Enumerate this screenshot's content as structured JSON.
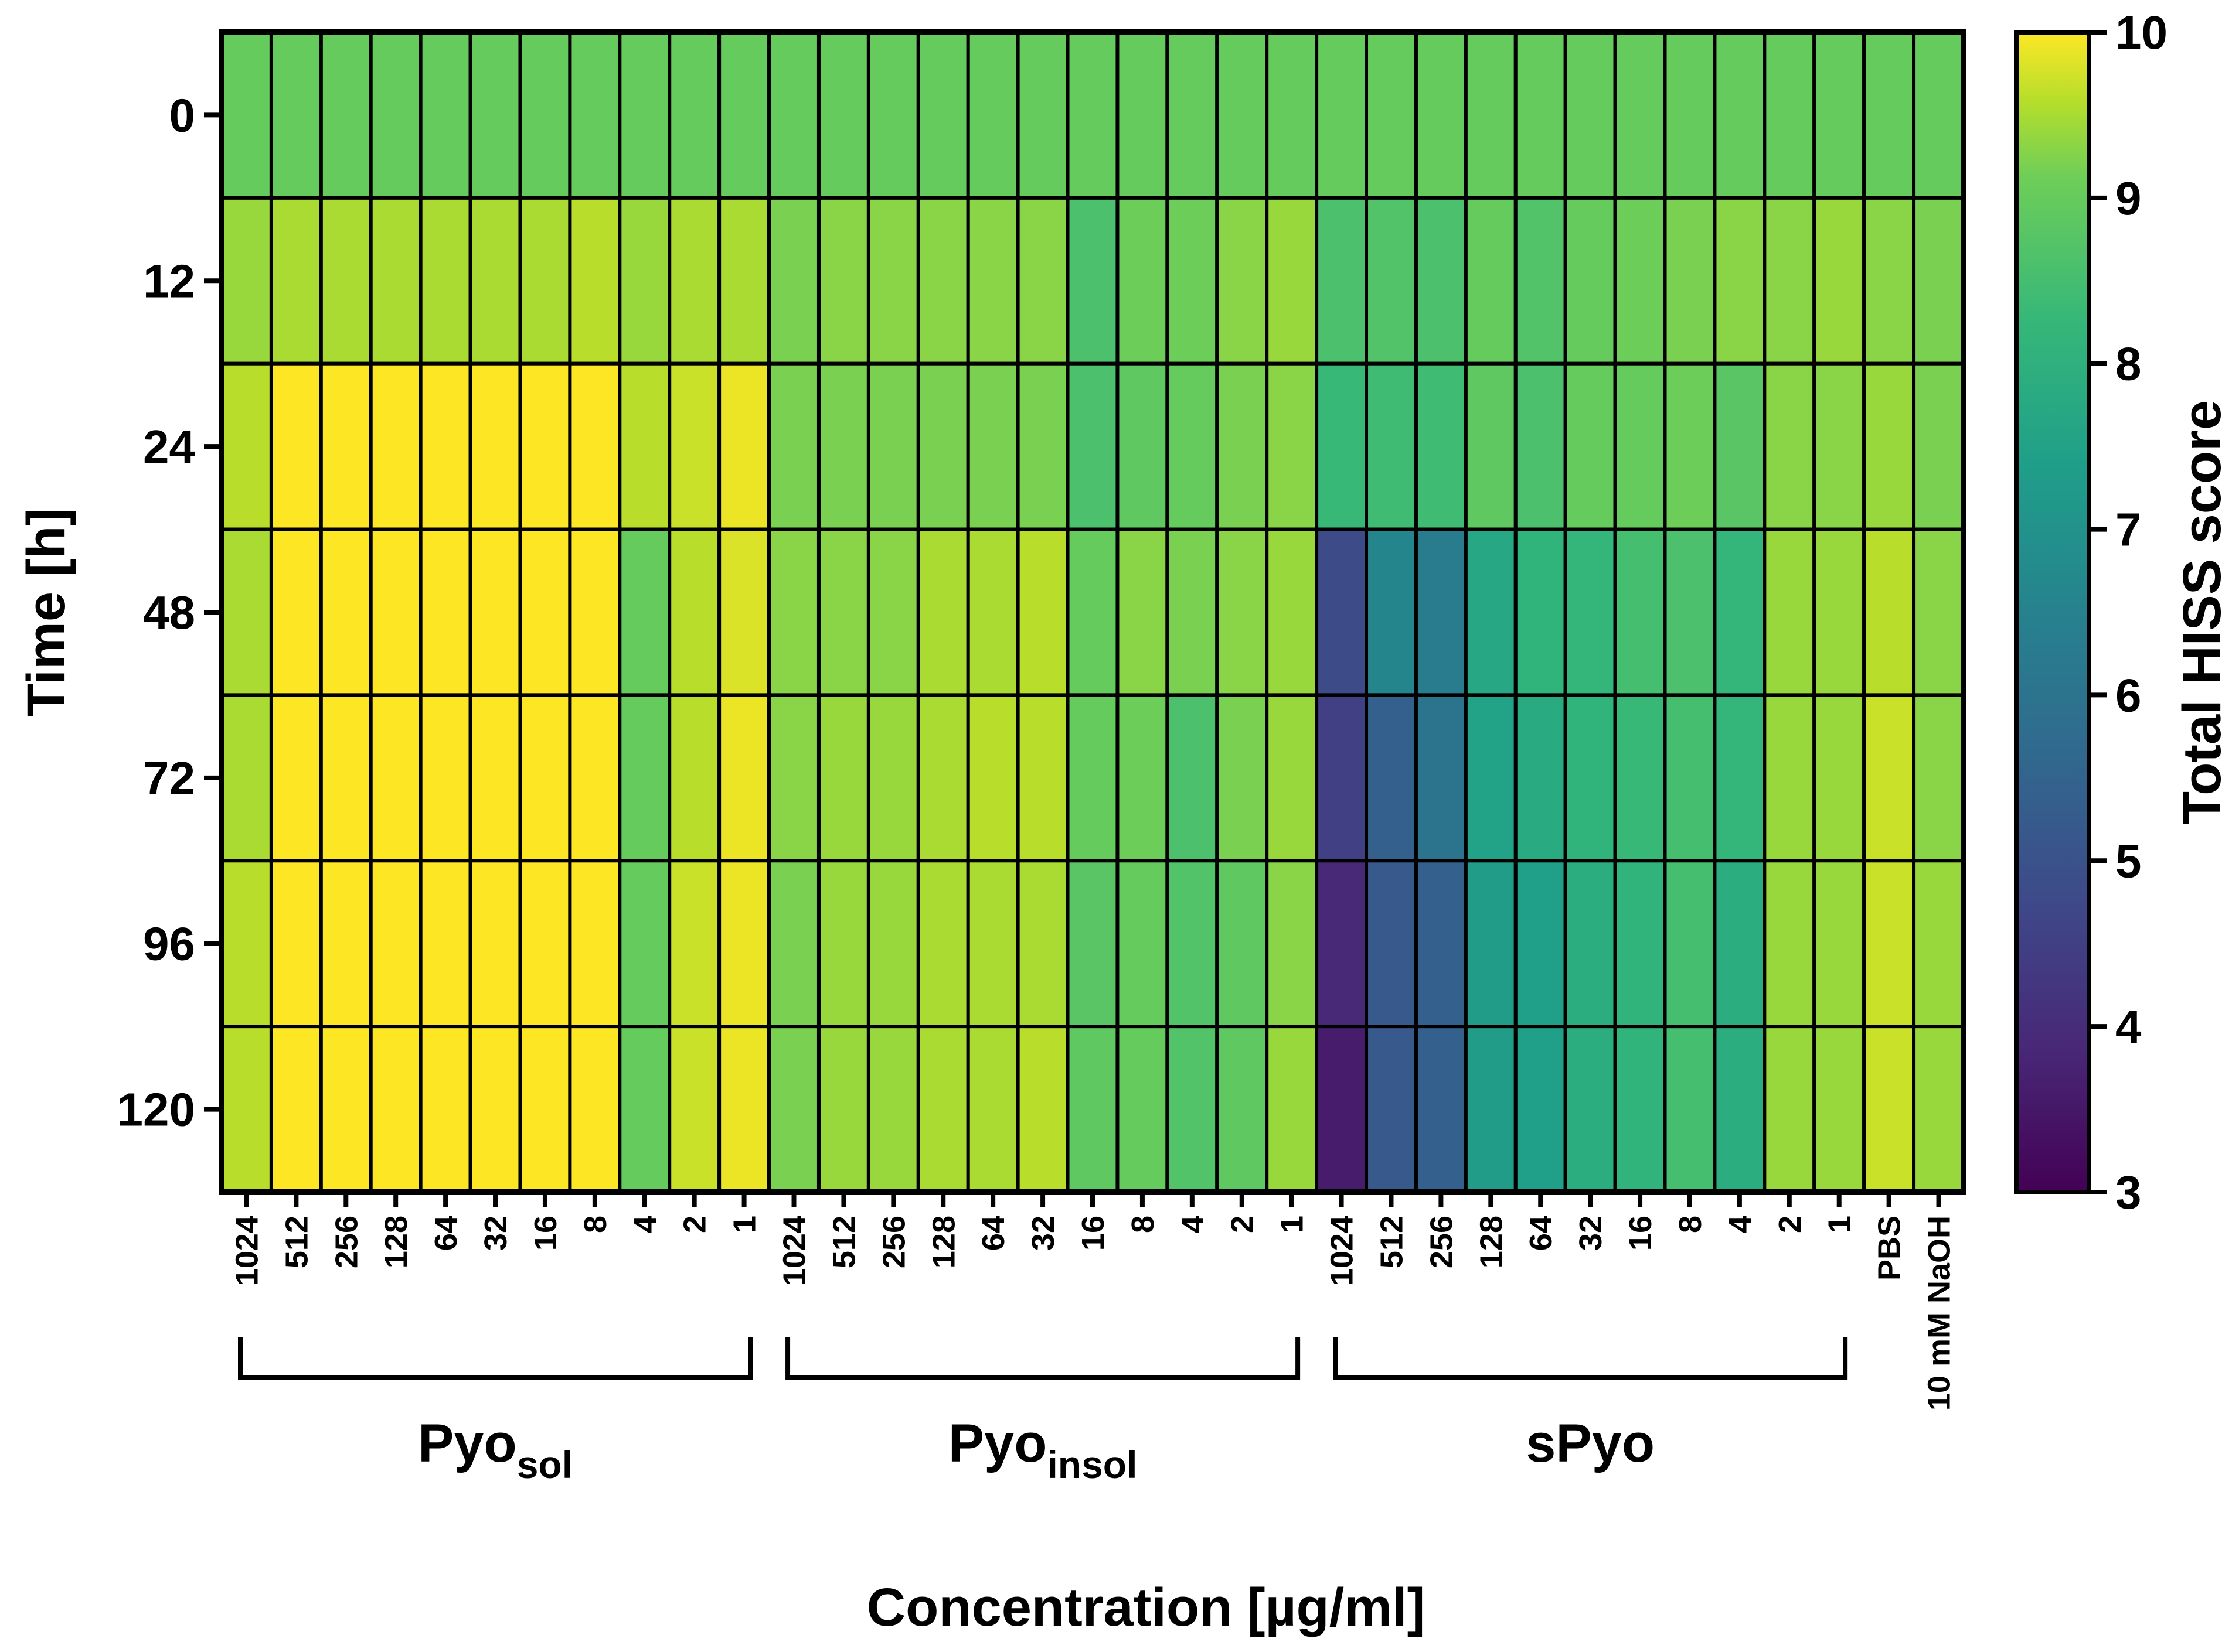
{
  "chart_data": {
    "type": "heatmap",
    "title": "",
    "xlabel": "Concentration [µg/ml]",
    "ylabel": "Time [h]",
    "rows": [
      "0",
      "12",
      "24",
      "48",
      "72",
      "96",
      "120"
    ],
    "columns": [
      "1024",
      "512",
      "256",
      "128",
      "64",
      "32",
      "16",
      "8",
      "4",
      "2",
      "1",
      "1024",
      "512",
      "256",
      "128",
      "64",
      "32",
      "16",
      "8",
      "4",
      "2",
      "1",
      "1024",
      "512",
      "256",
      "128",
      "64",
      "32",
      "16",
      "8",
      "4",
      "2",
      "1",
      "PBS",
      "10 mM NaOH"
    ],
    "groups": [
      {
        "label": "Pyo",
        "subscript": "sol",
        "first_col": 0,
        "last_col": 10
      },
      {
        "label": "Pyo",
        "subscript": "insol",
        "first_col": 11,
        "last_col": 21
      },
      {
        "label": "sPyo",
        "subscript": "",
        "first_col": 22,
        "last_col": 32
      }
    ],
    "values": [
      [
        9,
        9,
        9,
        9,
        9,
        9,
        9,
        9,
        9,
        9,
        9,
        9,
        9,
        9,
        9,
        9,
        9,
        9,
        9,
        9,
        9,
        9,
        9,
        9,
        9,
        9,
        9,
        9,
        9,
        9,
        9,
        9,
        9,
        9,
        9
      ],
      [
        9.4,
        9.5,
        9.5,
        9.5,
        9.5,
        9.5,
        9.5,
        9.6,
        9.4,
        9.5,
        9.5,
        9.2,
        9.3,
        9.3,
        9.3,
        9.3,
        9.3,
        8.6,
        9.1,
        9.1,
        9.3,
        9.4,
        8.6,
        8.7,
        8.6,
        9.0,
        8.7,
        9.0,
        9.1,
        9.2,
        9.3,
        9.3,
        9.4,
        9.3,
        9.2
      ],
      [
        9.6,
        10,
        10,
        10,
        10,
        10,
        10,
        10,
        9.6,
        9.7,
        9.9,
        9.2,
        9.2,
        9.2,
        9.2,
        9.2,
        9.2,
        8.6,
        8.9,
        9.0,
        9.2,
        9.3,
        8.3,
        8.4,
        8.4,
        8.9,
        8.6,
        9.0,
        9.0,
        9.1,
        8.8,
        9.3,
        9.3,
        9.4,
        9.2
      ],
      [
        9.5,
        10,
        10,
        10,
        10,
        10,
        10,
        10,
        9.0,
        9.6,
        9.8,
        9.3,
        9.3,
        9.3,
        9.5,
        9.5,
        9.6,
        9.0,
        9.3,
        9.2,
        9.3,
        9.4,
        4.8,
        6.6,
        6.3,
        7.7,
        8.1,
        8.2,
        8.5,
        8.6,
        8.2,
        9.4,
        9.4,
        9.6,
        9.3
      ],
      [
        9.5,
        10,
        10,
        10,
        10,
        10,
        10,
        10,
        9.0,
        9.6,
        9.9,
        9.3,
        9.4,
        9.4,
        9.5,
        9.6,
        9.6,
        9.0,
        9.1,
        8.6,
        9.2,
        9.4,
        4.5,
        5.4,
        6.0,
        7.5,
        7.8,
        8.1,
        8.3,
        8.5,
        8.2,
        9.4,
        9.4,
        9.7,
        9.3
      ],
      [
        9.6,
        10,
        10,
        10,
        10,
        10,
        10,
        10,
        9.0,
        9.7,
        9.9,
        9.2,
        9.4,
        9.4,
        9.5,
        9.5,
        9.5,
        8.8,
        9.0,
        8.7,
        8.9,
        9.3,
        3.9,
        5.2,
        5.4,
        7.3,
        7.4,
        7.9,
        8.1,
        8.5,
        7.9,
        9.4,
        9.4,
        9.7,
        9.4
      ],
      [
        9.6,
        10,
        10,
        10,
        10,
        10,
        10,
        10,
        9.0,
        9.7,
        9.9,
        9.2,
        9.4,
        9.4,
        9.5,
        9.5,
        9.6,
        8.9,
        9.0,
        8.7,
        8.9,
        9.4,
        3.6,
        5.2,
        5.4,
        7.3,
        7.4,
        7.9,
        8.1,
        8.5,
        7.9,
        9.4,
        9.4,
        9.7,
        9.4
      ]
    ],
    "colorbar": {
      "label": "Total HISS score",
      "min": 3,
      "max": 10,
      "ticks": [
        "3",
        "4",
        "5",
        "6",
        "7",
        "8",
        "9",
        "10"
      ],
      "colormap": "viridis"
    }
  }
}
